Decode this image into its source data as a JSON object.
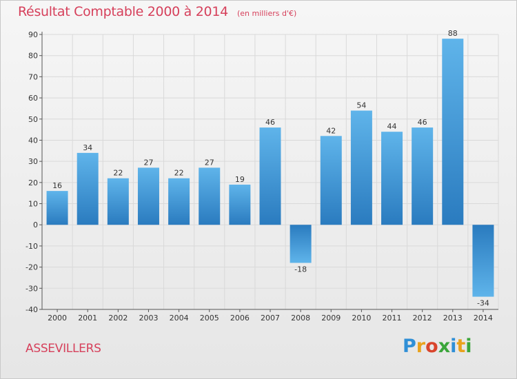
{
  "header": {
    "title": "Résultat Comptable 2000 à 2014",
    "subtitle": "(en milliers d'€)"
  },
  "footer": {
    "commune": "ASSEVILLERS",
    "logo_letters": [
      "P",
      "r",
      "o",
      "x",
      "i",
      "t",
      "i"
    ],
    "logo_colors": [
      "#2f8fd6",
      "#e9a21d",
      "#d9452c",
      "#3aa53a",
      "#2f8fd6",
      "#e9a21d",
      "#3aa53a"
    ]
  },
  "chart_data": {
    "type": "bar",
    "title": "Résultat Comptable 2000 à 2014",
    "subtitle": "(en milliers d'€)",
    "xlabel": "",
    "ylabel": "",
    "categories": [
      "2000",
      "2001",
      "2002",
      "2003",
      "2004",
      "2005",
      "2006",
      "2007",
      "2008",
      "2009",
      "2010",
      "2011",
      "2012",
      "2013",
      "2014"
    ],
    "values": [
      16,
      34,
      22,
      27,
      22,
      27,
      19,
      46,
      -18,
      42,
      54,
      44,
      46,
      88,
      -34
    ],
    "data_labels": [
      "16",
      "34",
      "22",
      "27",
      "22",
      "27",
      "19",
      "46",
      "-18",
      "42",
      "54",
      "44",
      "46",
      "88",
      "-34"
    ],
    "ylim": [
      -40,
      90
    ],
    "yticks": [
      90,
      80,
      70,
      60,
      50,
      40,
      30,
      20,
      10,
      0,
      -10,
      -20,
      -30,
      -40
    ],
    "grid": true,
    "colors": {
      "bar_light": "#5fb4ea",
      "bar_dark": "#2a7bbf",
      "grid": "#d9d9d9",
      "axis": "#555555",
      "text": "#333333"
    }
  }
}
